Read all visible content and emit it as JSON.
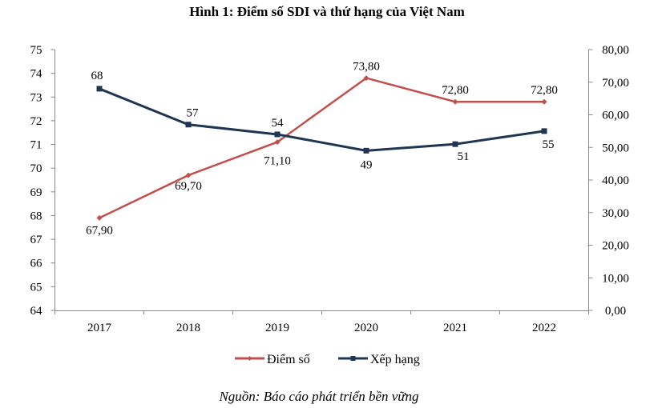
{
  "chart_data": {
    "type": "line",
    "title": "Hình 1: Điểm số SDI và thứ hạng của Việt Nam",
    "categories": [
      "2017",
      "2018",
      "2019",
      "2020",
      "2021",
      "2022"
    ],
    "series": [
      {
        "name": "Điểm số",
        "axis": "left",
        "color": "#C0504D",
        "values": [
          67.9,
          69.7,
          71.1,
          73.8,
          72.8,
          72.8
        ],
        "labels": [
          "67,90",
          "69,70",
          "71,10",
          "73,80",
          "72,80",
          "72,80"
        ]
      },
      {
        "name": "Xếp hạng",
        "axis": "right",
        "color": "#1F3552",
        "values": [
          68,
          57,
          54,
          49,
          51,
          55
        ],
        "labels": [
          "68",
          "57",
          "54",
          "49",
          "51",
          "55"
        ]
      }
    ],
    "left_axis": {
      "ylim": [
        64,
        75
      ],
      "ticks": [
        "64",
        "65",
        "66",
        "67",
        "68",
        "69",
        "70",
        "71",
        "72",
        "73",
        "74",
        "75"
      ]
    },
    "right_axis": {
      "ylim": [
        0,
        80
      ],
      "ticks": [
        "0,00",
        "10,00",
        "20,00",
        "30,00",
        "40,00",
        "50,00",
        "60,00",
        "70,00",
        "80,00"
      ]
    },
    "legend_position": "bottom",
    "grid": false,
    "source": "Nguồn: Báo cáo phát triển bền vững"
  }
}
